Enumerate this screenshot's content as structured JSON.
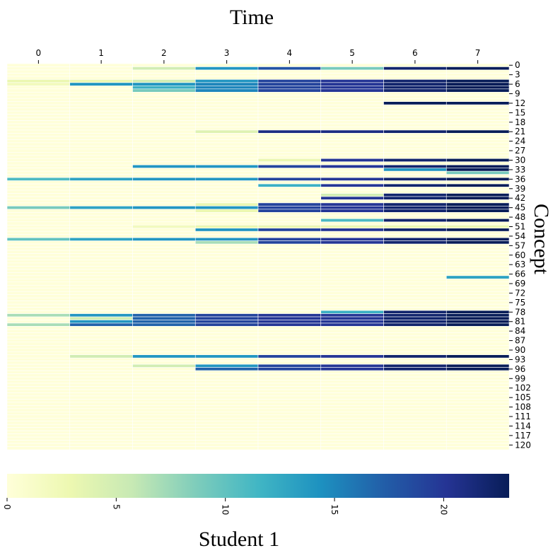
{
  "chart_data": {
    "type": "heatmap",
    "title": "Time",
    "xlabel": "Time",
    "ylabel": "Concept",
    "colorbar_label": "Student 1",
    "colormap": "YlGnBu",
    "color_range": [
      0,
      23
    ],
    "colorbar_ticks": [
      "0",
      "5",
      "10",
      "15",
      "20"
    ],
    "x_ticks": [
      "0",
      "1",
      "2",
      "3",
      "4",
      "5",
      "6",
      "7"
    ],
    "y_ticks": [
      "0",
      "3",
      "6",
      "9",
      "12",
      "15",
      "18",
      "21",
      "24",
      "27",
      "30",
      "33",
      "36",
      "39",
      "42",
      "45",
      "48",
      "51",
      "54",
      "57",
      "60",
      "63",
      "66",
      "69",
      "72",
      "75",
      "78",
      "81",
      "84",
      "87",
      "90",
      "93",
      "96",
      "99",
      "102",
      "105",
      "108",
      "111",
      "114",
      "117",
      "120"
    ],
    "n_rows": 122,
    "n_cols": 8,
    "default_value": 0,
    "rows": [
      {
        "concept": 1,
        "values": [
          0,
          0,
          5,
          14,
          18,
          9,
          22,
          23
        ]
      },
      {
        "concept": 5,
        "values": [
          3,
          3,
          5,
          14,
          19,
          20,
          22,
          23
        ]
      },
      {
        "concept": 6,
        "values": [
          2,
          14,
          14,
          15,
          19,
          20,
          22,
          23
        ]
      },
      {
        "concept": 7,
        "values": [
          0,
          0,
          12,
          15,
          19,
          20,
          22,
          23
        ]
      },
      {
        "concept": 8,
        "values": [
          0,
          0,
          9,
          15,
          19,
          20,
          22,
          23
        ]
      },
      {
        "concept": 12,
        "values": [
          0,
          0,
          0,
          0,
          0,
          0,
          23,
          23
        ]
      },
      {
        "concept": 21,
        "values": [
          0,
          0,
          0,
          4,
          21,
          21,
          22,
          23
        ]
      },
      {
        "concept": 30,
        "values": [
          0,
          0,
          0,
          0,
          3,
          20,
          22,
          23
        ]
      },
      {
        "concept": 32,
        "values": [
          0,
          0,
          14,
          14,
          19,
          20,
          22,
          23
        ]
      },
      {
        "concept": 33,
        "values": [
          0,
          0,
          0,
          0,
          0,
          0,
          14,
          23
        ]
      },
      {
        "concept": 34,
        "values": [
          0,
          0,
          0,
          0,
          0,
          0,
          0,
          9
        ]
      },
      {
        "concept": 36,
        "values": [
          11,
          13,
          14,
          14,
          19,
          20,
          22,
          23
        ]
      },
      {
        "concept": 38,
        "values": [
          0,
          0,
          0,
          0,
          12,
          20,
          22,
          23
        ]
      },
      {
        "concept": 41,
        "values": [
          0,
          0,
          0,
          0,
          0,
          5,
          22,
          23
        ]
      },
      {
        "concept": 42,
        "values": [
          0,
          0,
          0,
          0,
          0,
          20,
          22,
          23
        ]
      },
      {
        "concept": 44,
        "values": [
          0,
          0,
          0,
          3,
          19,
          20,
          22,
          23
        ]
      },
      {
        "concept": 45,
        "values": [
          9,
          13,
          14,
          14,
          19,
          20,
          22,
          23
        ]
      },
      {
        "concept": 46,
        "values": [
          0,
          0,
          0,
          3,
          19,
          20,
          22,
          23
        ]
      },
      {
        "concept": 49,
        "values": [
          0,
          0,
          0,
          0,
          0,
          11,
          22,
          23
        ]
      },
      {
        "concept": 51,
        "values": [
          0,
          0,
          2,
          3,
          3,
          3,
          3,
          3
        ]
      },
      {
        "concept": 52,
        "values": [
          0,
          0,
          0,
          14,
          19,
          20,
          22,
          23
        ]
      },
      {
        "concept": 55,
        "values": [
          10,
          13,
          14,
          14,
          19,
          20,
          22,
          23
        ]
      },
      {
        "concept": 56,
        "values": [
          0,
          0,
          0,
          7,
          19,
          20,
          22,
          23
        ]
      },
      {
        "concept": 67,
        "values": [
          0,
          0,
          0,
          0,
          0,
          0,
          0,
          13
        ]
      },
      {
        "concept": 78,
        "values": [
          0,
          0,
          0,
          0,
          0,
          12,
          22,
          23
        ]
      },
      {
        "concept": 79,
        "values": [
          7,
          14,
          17,
          19,
          20,
          20,
          22,
          23
        ]
      },
      {
        "concept": 80,
        "values": [
          0,
          5,
          17,
          19,
          20,
          20,
          22,
          23
        ]
      },
      {
        "concept": 81,
        "values": [
          0,
          14,
          17,
          19,
          20,
          20,
          22,
          23
        ]
      },
      {
        "concept": 82,
        "values": [
          7,
          17,
          17,
          19,
          20,
          20,
          22,
          23
        ]
      },
      {
        "concept": 92,
        "values": [
          0,
          5,
          14,
          14,
          19,
          20,
          22,
          23
        ]
      },
      {
        "concept": 95,
        "values": [
          0,
          0,
          5,
          14,
          19,
          20,
          22,
          23
        ]
      },
      {
        "concept": 96,
        "values": [
          0,
          0,
          0,
          17,
          19,
          20,
          22,
          23
        ]
      }
    ]
  }
}
